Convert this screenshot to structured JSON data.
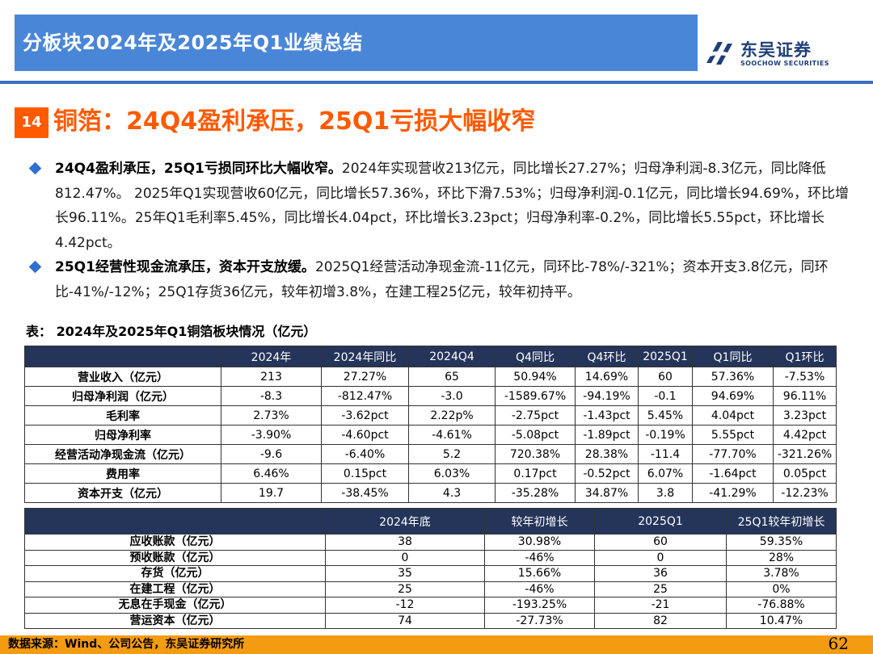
{
  "header": {
    "title": "分板块2024年及2025年Q1业绩总结"
  },
  "logo": {
    "cn": "东吴证券",
    "en": "SOOCHOW SECURITIES",
    "colors": {
      "mark": "#1f3f78"
    }
  },
  "section": {
    "number": "14",
    "title": "铜箔：24Q4盈利承压，25Q1亏损大幅收窄"
  },
  "bullets": [
    {
      "bold": "24Q4盈利承压，25Q1亏损同环比大幅收窄。",
      "text": "2024年实现营收213亿元，同比增长27.27%；归母净利润-8.3亿元，同比降低812.47%。 2025年Q1实现营收60亿元，同比增长57.36%，环比下滑7.53%；归母净利润-0.1亿元，同比增长94.69%，环比增长96.11%。25年Q1毛利率5.45%，同比增长4.04pct，环比增长3.23pct；归母净利率-0.2%，同比增长5.55pct，环比增长4.42pct。"
    },
    {
      "bold": "25Q1经营性现金流承压，资本开支放缓。",
      "text": "2025Q1经营活动净现金流-11亿元，同环比-78%/-321%；资本开支3.8亿元，同环比-41%/-12%；25Q1存货36亿元，较年初增3.8%，在建工程25亿元，较年初持平。"
    }
  ],
  "table_caption": "表：  2024年及2025年Q1铜箔板块情况（亿元）",
  "table1": {
    "headers": [
      "",
      "2024年",
      "2024年同比",
      "2024Q4",
      "Q4同比",
      "Q4环比",
      "2025Q1",
      "Q1同比",
      "Q1环比"
    ],
    "rows": [
      [
        "营业收入（亿元）",
        "213",
        "27.27%",
        "65",
        "50.94%",
        "14.69%",
        "60",
        "57.36%",
        "-7.53%"
      ],
      [
        "归母净利润（亿元）",
        "-8.3",
        "-812.47%",
        "-3.0",
        "-1589.67%",
        "-94.19%",
        "-0.1",
        "94.69%",
        "96.11%"
      ],
      [
        "毛利率",
        "2.73%",
        "-3.62pct",
        "2.22p%",
        "-2.75pct",
        "-1.43pct",
        "5.45%",
        "4.04pct",
        "3.23pct"
      ],
      [
        "归母净利率",
        "-3.90%",
        "-4.60pct",
        "-4.61%",
        "-5.08pct",
        "-1.89pct",
        "-0.19%",
        "5.55pct",
        "4.42pct"
      ],
      [
        "经营活动净现金流（亿元）",
        "-9.6",
        "-6.40%",
        "5.2",
        "720.38%",
        "28.38%",
        "-11.4",
        "-77.70%",
        "-321.26%"
      ],
      [
        "费用率",
        "6.46%",
        "0.15pct",
        "6.03%",
        "0.17pct",
        "-0.52pct",
        "6.07%",
        "-1.64pct",
        "0.05pct"
      ],
      [
        "资本开支（亿元）",
        "19.7",
        "-38.45%",
        "4.3",
        "-35.28%",
        "34.87%",
        "3.8",
        "-41.29%",
        "-12.23%"
      ]
    ]
  },
  "table2": {
    "headers": [
      "",
      "2024年底",
      "较年初增长",
      "2025Q1",
      "25Q1较年初增长"
    ],
    "rows": [
      [
        "应收账款（亿元）",
        "38",
        "30.98%",
        "60",
        "59.35%"
      ],
      [
        "预收账款（亿元）",
        "0",
        "-46%",
        "0",
        "28%"
      ],
      [
        "存货（亿元）",
        "35",
        "15.66%",
        "36",
        "3.78%"
      ],
      [
        "在建工程（亿元）",
        "25",
        "-46%",
        "25",
        "0%"
      ],
      [
        "无息在手现金（亿元）",
        "-12",
        "-193.25%",
        "-21",
        "-76.88%"
      ],
      [
        "营运资本（亿元）",
        "74",
        "-27.73%",
        "82",
        "10.47%"
      ]
    ]
  },
  "footer": {
    "source": "数据来源：Wind、公司公告，东吴证券研究所",
    "page": "62"
  },
  "colors": {
    "header_bar": "#4a86d8",
    "accent_orange": "#ff5a00",
    "table_header": "#25355a",
    "footer_bar": "#f39c12",
    "bullet": "#2f6fd1"
  }
}
